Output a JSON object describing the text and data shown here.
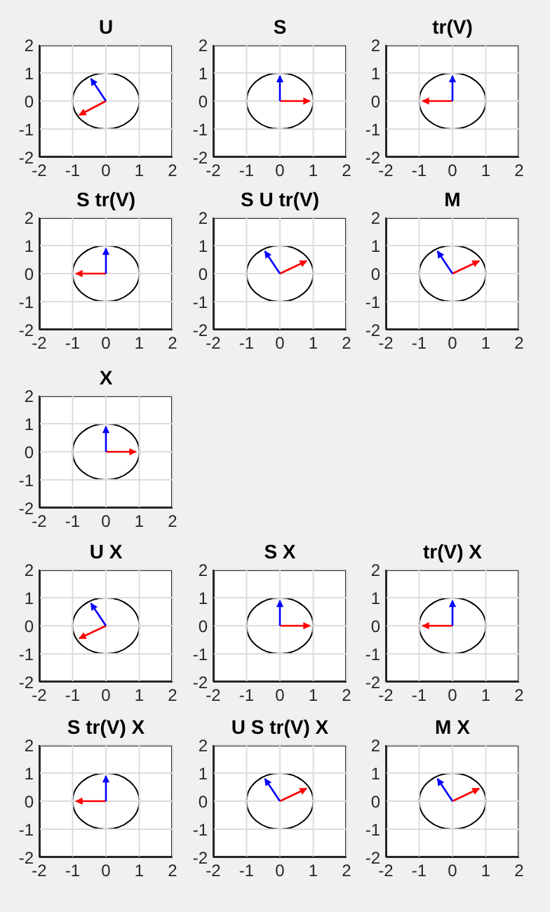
{
  "chart_data": [
    {
      "type": "line",
      "title": "U",
      "xlim": [
        -2,
        2
      ],
      "ylim": [
        -2,
        2
      ],
      "xticks": [
        -2,
        -1,
        0,
        1,
        2
      ],
      "yticks": [
        -2,
        -1,
        0,
        1,
        2
      ],
      "grid": true,
      "series": [
        {
          "color": "#ff0000",
          "x": [
            0,
            -0.8
          ],
          "values": [
            0,
            -0.5
          ]
        },
        {
          "color": "#0000ff",
          "x": [
            0,
            -0.45
          ],
          "values": [
            0,
            0.8
          ]
        }
      ]
    },
    {
      "type": "line",
      "title": "S",
      "xlim": [
        -2,
        2
      ],
      "ylim": [
        -2,
        2
      ],
      "xticks": [
        -2,
        -1,
        0,
        1,
        2
      ],
      "yticks": [
        -2,
        -1,
        0,
        1,
        2
      ],
      "grid": true,
      "series": [
        {
          "color": "#ff0000",
          "x": [
            0,
            0.9
          ],
          "values": [
            0,
            0
          ]
        },
        {
          "color": "#0000ff",
          "x": [
            0,
            0
          ],
          "values": [
            0,
            0.9
          ]
        }
      ]
    },
    {
      "type": "line",
      "title": "tr(V)",
      "xlim": [
        -2,
        2
      ],
      "ylim": [
        -2,
        2
      ],
      "xticks": [
        -2,
        -1,
        0,
        1,
        2
      ],
      "yticks": [
        -2,
        -1,
        0,
        1,
        2
      ],
      "grid": true,
      "series": [
        {
          "color": "#ff0000",
          "x": [
            0,
            -0.9
          ],
          "values": [
            0,
            0
          ]
        },
        {
          "color": "#0000ff",
          "x": [
            0,
            0
          ],
          "values": [
            0,
            0.9
          ]
        }
      ]
    },
    {
      "type": "line",
      "title": "S tr(V)",
      "xlim": [
        -2,
        2
      ],
      "ylim": [
        -2,
        2
      ],
      "xticks": [
        -2,
        -1,
        0,
        1,
        2
      ],
      "yticks": [
        -2,
        -1,
        0,
        1,
        2
      ],
      "grid": true,
      "series": [
        {
          "color": "#ff0000",
          "x": [
            0,
            -0.9
          ],
          "values": [
            0,
            0
          ]
        },
        {
          "color": "#0000ff",
          "x": [
            0,
            0
          ],
          "values": [
            0,
            0.9
          ]
        }
      ]
    },
    {
      "type": "line",
      "title": "S U tr(V)",
      "xlim": [
        -2,
        2
      ],
      "ylim": [
        -2,
        2
      ],
      "xticks": [
        -2,
        -1,
        0,
        1,
        2
      ],
      "yticks": [
        -2,
        -1,
        0,
        1,
        2
      ],
      "grid": true,
      "series": [
        {
          "color": "#ff0000",
          "x": [
            0,
            0.8
          ],
          "values": [
            0,
            0.45
          ]
        },
        {
          "color": "#0000ff",
          "x": [
            0,
            -0.45
          ],
          "values": [
            0,
            0.8
          ]
        }
      ]
    },
    {
      "type": "line",
      "title": "M",
      "xlim": [
        -2,
        2
      ],
      "ylim": [
        -2,
        2
      ],
      "xticks": [
        -2,
        -1,
        0,
        1,
        2
      ],
      "yticks": [
        -2,
        -1,
        0,
        1,
        2
      ],
      "grid": true,
      "series": [
        {
          "color": "#ff0000",
          "x": [
            0,
            0.8
          ],
          "values": [
            0,
            0.45
          ]
        },
        {
          "color": "#0000ff",
          "x": [
            0,
            -0.45
          ],
          "values": [
            0,
            0.8
          ]
        }
      ]
    },
    {
      "type": "line",
      "title": "X",
      "xlim": [
        -2,
        2
      ],
      "ylim": [
        -2,
        2
      ],
      "xticks": [
        -2,
        -1,
        0,
        1,
        2
      ],
      "yticks": [
        -2,
        -1,
        0,
        1,
        2
      ],
      "grid": true,
      "series": [
        {
          "color": "#ff0000",
          "x": [
            0,
            0.9
          ],
          "values": [
            0,
            0
          ]
        },
        {
          "color": "#0000ff",
          "x": [
            0,
            0
          ],
          "values": [
            0,
            0.9
          ]
        }
      ]
    },
    {
      "type": "line",
      "title": "U X",
      "xlim": [
        -2,
        2
      ],
      "ylim": [
        -2,
        2
      ],
      "xticks": [
        -2,
        -1,
        0,
        1,
        2
      ],
      "yticks": [
        -2,
        -1,
        0,
        1,
        2
      ],
      "grid": true,
      "series": [
        {
          "color": "#ff0000",
          "x": [
            0,
            -0.8
          ],
          "values": [
            0,
            -0.45
          ]
        },
        {
          "color": "#0000ff",
          "x": [
            0,
            -0.45
          ],
          "values": [
            0,
            0.8
          ]
        }
      ]
    },
    {
      "type": "line",
      "title": "S X",
      "xlim": [
        -2,
        2
      ],
      "ylim": [
        -2,
        2
      ],
      "xticks": [
        -2,
        -1,
        0,
        1,
        2
      ],
      "yticks": [
        -2,
        -1,
        0,
        1,
        2
      ],
      "grid": true,
      "series": [
        {
          "color": "#ff0000",
          "x": [
            0,
            0.9
          ],
          "values": [
            0,
            0
          ]
        },
        {
          "color": "#0000ff",
          "x": [
            0,
            0
          ],
          "values": [
            0,
            0.9
          ]
        }
      ]
    },
    {
      "type": "line",
      "title": "tr(V) X",
      "xlim": [
        -2,
        2
      ],
      "ylim": [
        -2,
        2
      ],
      "xticks": [
        -2,
        -1,
        0,
        1,
        2
      ],
      "yticks": [
        -2,
        -1,
        0,
        1,
        2
      ],
      "grid": true,
      "series": [
        {
          "color": "#ff0000",
          "x": [
            0,
            -0.9
          ],
          "values": [
            0,
            0
          ]
        },
        {
          "color": "#0000ff",
          "x": [
            0,
            0
          ],
          "values": [
            0,
            0.9
          ]
        }
      ]
    },
    {
      "type": "line",
      "title": "S tr(V) X",
      "xlim": [
        -2,
        2
      ],
      "ylim": [
        -2,
        2
      ],
      "xticks": [
        -2,
        -1,
        0,
        1,
        2
      ],
      "yticks": [
        -2,
        -1,
        0,
        1,
        2
      ],
      "grid": true,
      "series": [
        {
          "color": "#ff0000",
          "x": [
            0,
            -0.9
          ],
          "values": [
            0,
            0
          ]
        },
        {
          "color": "#0000ff",
          "x": [
            0,
            0
          ],
          "values": [
            0,
            0.9
          ]
        }
      ]
    },
    {
      "type": "line",
      "title": "U S tr(V) X",
      "xlim": [
        -2,
        2
      ],
      "ylim": [
        -2,
        2
      ],
      "xticks": [
        -2,
        -1,
        0,
        1,
        2
      ],
      "yticks": [
        -2,
        -1,
        0,
        1,
        2
      ],
      "grid": true,
      "series": [
        {
          "color": "#ff0000",
          "x": [
            0,
            0.8
          ],
          "values": [
            0,
            0.45
          ]
        },
        {
          "color": "#0000ff",
          "x": [
            0,
            -0.45
          ],
          "values": [
            0,
            0.8
          ]
        }
      ]
    },
    {
      "type": "line",
      "title": "M X",
      "xlim": [
        -2,
        2
      ],
      "ylim": [
        -2,
        2
      ],
      "xticks": [
        -2,
        -1,
        0,
        1,
        2
      ],
      "yticks": [
        -2,
        -1,
        0,
        1,
        2
      ],
      "grid": true,
      "series": [
        {
          "color": "#ff0000",
          "x": [
            0,
            0.8
          ],
          "values": [
            0,
            0.45
          ]
        },
        {
          "color": "#0000ff",
          "x": [
            0,
            -0.45
          ],
          "values": [
            0,
            0.8
          ]
        }
      ]
    }
  ]
}
